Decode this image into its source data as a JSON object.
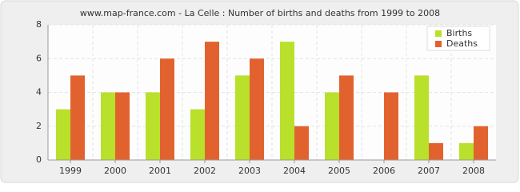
{
  "chart_data": {
    "type": "bar",
    "title": "www.map-france.com - La Celle : Number of births and deaths from 1999 to 2008",
    "categories": [
      "1999",
      "2000",
      "2001",
      "2002",
      "2003",
      "2004",
      "2005",
      "2006",
      "2007",
      "2008"
    ],
    "series": [
      {
        "name": "Births",
        "color": "#b9e02a",
        "values": [
          3,
          4,
          4,
          3,
          5,
          7,
          4,
          0,
          5,
          1
        ]
      },
      {
        "name": "Deaths",
        "color": "#e2622f",
        "values": [
          5,
          4,
          6,
          7,
          6,
          2,
          5,
          4,
          1,
          2
        ]
      }
    ],
    "ylim": [
      0,
      8
    ],
    "yticks": [
      0,
      2,
      4,
      6,
      8
    ],
    "grid": true,
    "legend": "top-right"
  }
}
